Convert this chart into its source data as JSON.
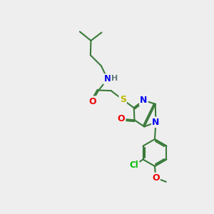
{
  "bg_color": "#eeeeee",
  "bond_color": "#3a7a3a",
  "atom_colors": {
    "N": "#0000ee",
    "O": "#ee0000",
    "S": "#bbbb00",
    "Cl": "#00bb00",
    "H": "#607878",
    "C": "#3a7a3a"
  },
  "font_size": 8.5,
  "line_width": 1.5,
  "figsize": [
    3.0,
    3.0
  ],
  "dpi": 100,
  "xlim": [
    0,
    10
  ],
  "ylim": [
    0,
    10
  ]
}
